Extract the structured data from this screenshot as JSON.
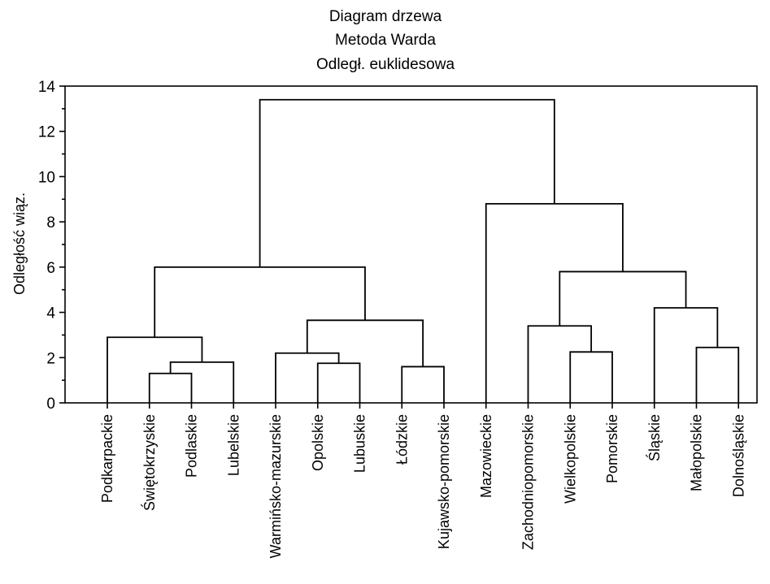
{
  "chart_data": {
    "type": "dendrogram",
    "title_lines": [
      "Diagram drzewa",
      "Metoda Warda",
      "Odległ. euklidesowa"
    ],
    "ylabel": "Odległość wiąz.",
    "xlabel": "",
    "ylim": [
      0,
      14
    ],
    "yticks": [
      0,
      2,
      4,
      6,
      8,
      10,
      12,
      14
    ],
    "grid": false,
    "leaves": [
      "Podkarpackie",
      "Świętokrzyskie",
      "Podlaskie",
      "Lubelskie",
      "Warmińsko-mazurskie",
      "Opolskie",
      "Lubuskie",
      "Łódzkie",
      "Kujawsko-pomorskie",
      "Mazowieckie",
      "Zachodniopomorskie",
      "Wielkopolskie",
      "Pomorskie",
      "Śląskie",
      "Małopolskie",
      "Dolnośląskie"
    ],
    "merges": [
      {
        "id": "m1",
        "left": "Świętokrzyskie",
        "right": "Podlaskie",
        "height": 1.3
      },
      {
        "id": "m2",
        "left": "m1",
        "right": "Lubelskie",
        "height": 1.8
      },
      {
        "id": "m3",
        "left": "Podkarpackie",
        "right": "m2",
        "height": 2.9
      },
      {
        "id": "m4",
        "left": "Opolskie",
        "right": "Lubuskie",
        "height": 1.75
      },
      {
        "id": "m5",
        "left": "Warmińsko-mazurskie",
        "right": "m4",
        "height": 2.2
      },
      {
        "id": "m6",
        "left": "Łódzkie",
        "right": "Kujawsko-pomorskie",
        "height": 1.6
      },
      {
        "id": "m7",
        "left": "m5",
        "right": "m6",
        "height": 3.65
      },
      {
        "id": "m8",
        "left": "m3",
        "right": "m7",
        "height": 6.0
      },
      {
        "id": "m9",
        "left": "Wielkopolskie",
        "right": "Pomorskie",
        "height": 2.25
      },
      {
        "id": "m10",
        "left": "Zachodniopomorskie",
        "right": "m9",
        "height": 3.4
      },
      {
        "id": "m11",
        "left": "Małopolskie",
        "right": "Dolnośląskie",
        "height": 2.45
      },
      {
        "id": "m12",
        "left": "Śląskie",
        "right": "m11",
        "height": 4.2
      },
      {
        "id": "m13",
        "left": "m10",
        "right": "m12",
        "height": 5.8
      },
      {
        "id": "m14",
        "left": "Mazowieckie",
        "right": "m13",
        "height": 8.8
      },
      {
        "id": "m15",
        "left": "m8",
        "right": "m14",
        "height": 13.4
      }
    ]
  }
}
